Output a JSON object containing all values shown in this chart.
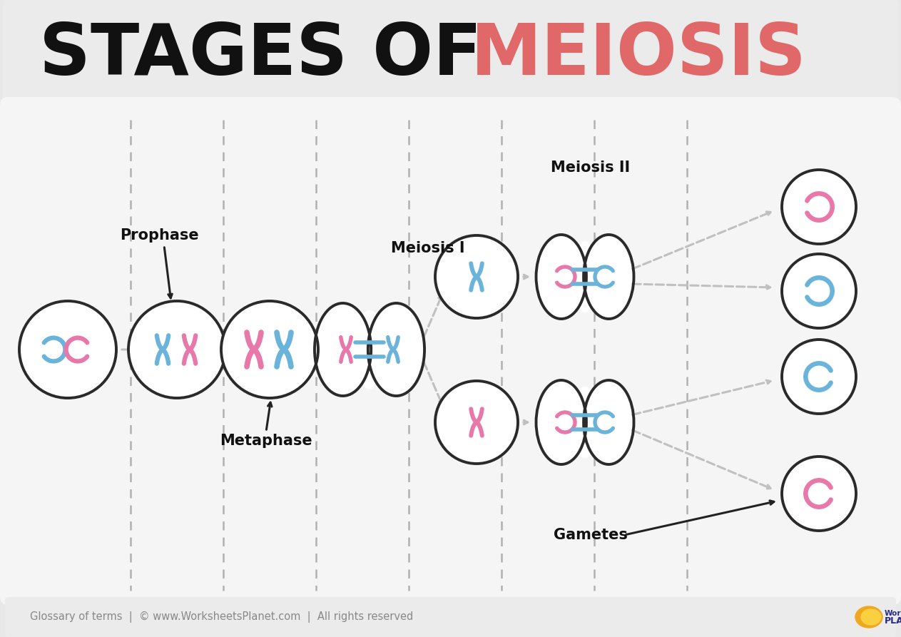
{
  "title_black": "STAGES OF ",
  "title_red": "MEIOSIS",
  "title_black_color": "#111111",
  "title_red_color": "#e06868",
  "bg_color": "#e8e8e8",
  "panel_bg": "#f5f5f5",
  "title_panel_color": "#ebebeb",
  "footer_text": "Glossary of terms  |  © www.WorksheetsPlanet.com  |  All rights reserved",
  "blue_chrom": "#6ab4dc",
  "pink_chrom": "#e878aa",
  "cell_bg_light": "#e0e0e0",
  "cell_bg_dark": "#d0d0d0",
  "dashed_line_color": "#b0b0b0",
  "arrow_gray": "#c0c0c0",
  "arrow_black": "#222222",
  "label_color": "#111111",
  "cell_outline": "#2a2a2a",
  "white": "#ffffff"
}
